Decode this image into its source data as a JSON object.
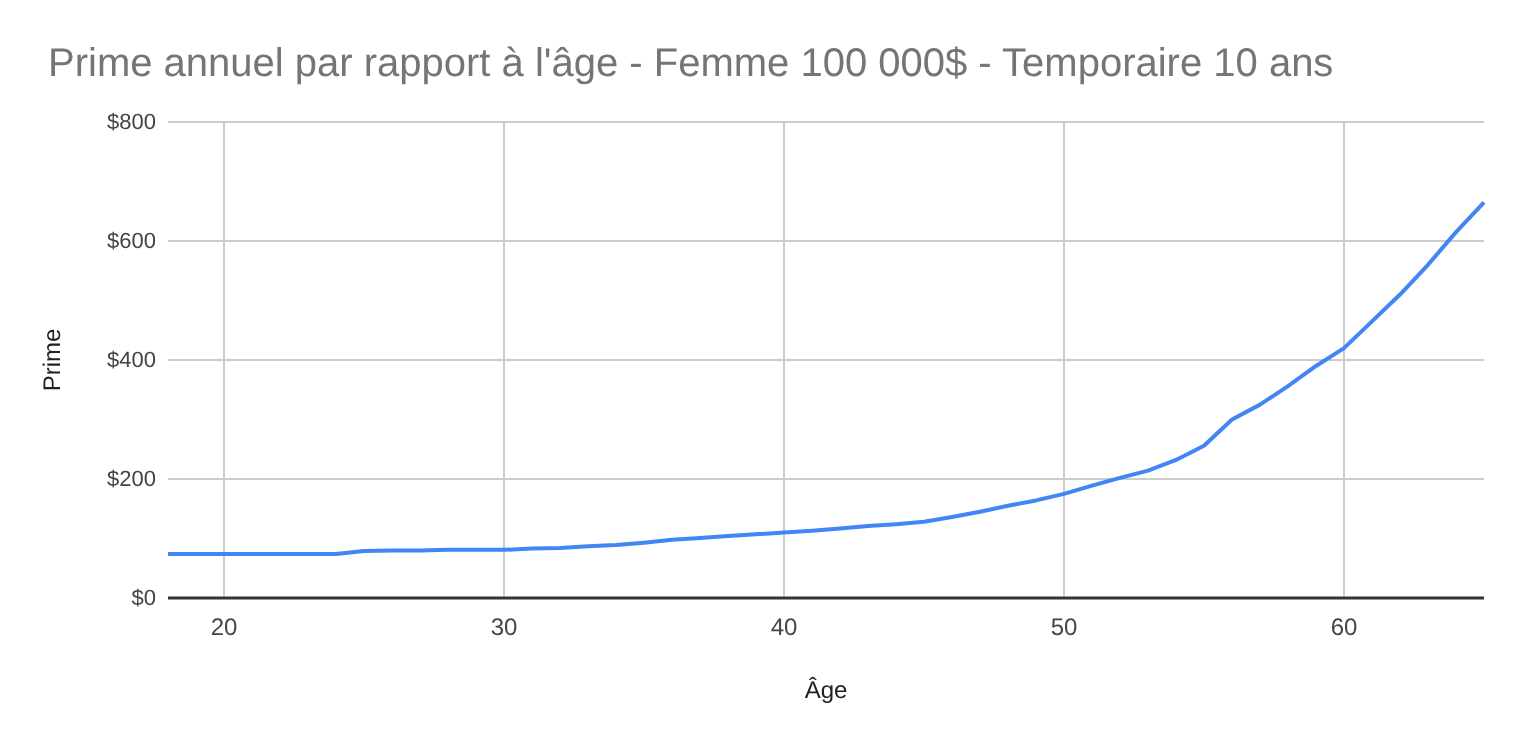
{
  "chart_data": {
    "type": "line",
    "title": "Prime annuel par rapport à l'âge - Femme 100 000$ - Temporaire 10 ans",
    "xlabel": "Âge",
    "ylabel": "Prime",
    "x": [
      18,
      19,
      20,
      21,
      22,
      23,
      24,
      25,
      26,
      27,
      28,
      29,
      30,
      31,
      32,
      33,
      34,
      35,
      36,
      37,
      38,
      39,
      40,
      41,
      42,
      43,
      44,
      45,
      46,
      47,
      48,
      49,
      50,
      51,
      52,
      53,
      54,
      55,
      56,
      57,
      58,
      59,
      60,
      61,
      62,
      63,
      64,
      65
    ],
    "series": [
      {
        "color": "#4285f4",
        "values": [
          74,
          74,
          74,
          74,
          74,
          74,
          74,
          79,
          80,
          80,
          81,
          81,
          81,
          83,
          84,
          87,
          89,
          93,
          98,
          101,
          104,
          107,
          110,
          113,
          117,
          121,
          124,
          128,
          136,
          145,
          155,
          164,
          175,
          189,
          202,
          214,
          232,
          256,
          300,
          325,
          356,
          390,
          420,
          465,
          510,
          560,
          615,
          665
        ]
      }
    ],
    "xlim": [
      18,
      65
    ],
    "xticks": [
      20,
      30,
      40,
      50,
      60
    ],
    "ylim": [
      0,
      800
    ],
    "yticks": [
      {
        "value": 0,
        "label": "$0"
      },
      {
        "value": 200,
        "label": "$200"
      },
      {
        "value": 400,
        "label": "$400"
      },
      {
        "value": 600,
        "label": "$600"
      },
      {
        "value": 800,
        "label": "$800"
      }
    ],
    "grid": true,
    "marker": "none",
    "line_style": "solid"
  }
}
